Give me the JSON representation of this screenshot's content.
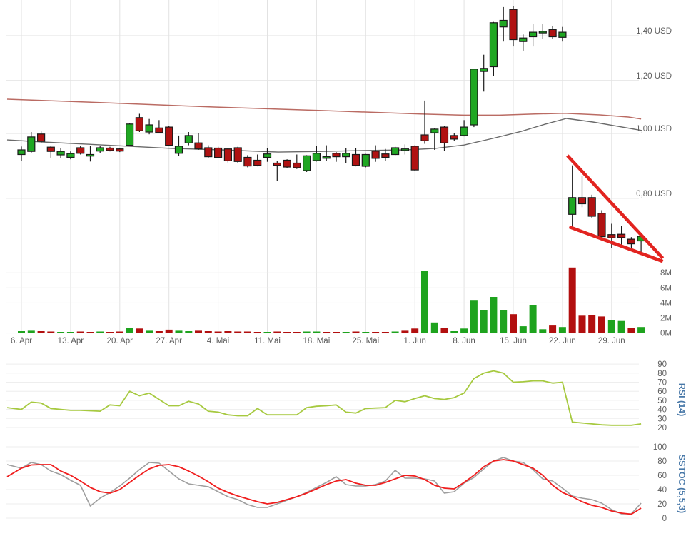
{
  "chart_data": {
    "type": "candlestick",
    "title": "",
    "scale": "log",
    "x_ticks": [
      "6. Apr",
      "13. Apr",
      "20. Apr",
      "27. Apr",
      "4. Mai",
      "11. Mai",
      "18. Mai",
      "25. Mai",
      "1. Jun",
      "8. Jun",
      "15. Jun",
      "22. Jun",
      "29. Jun"
    ],
    "price_axis": {
      "labels": [
        "1,40 USD",
        "1,20 USD",
        "1,00 USD",
        "0,80 USD"
      ],
      "values": [
        1.4,
        1.2,
        1.0,
        0.8
      ]
    },
    "volume_axis": {
      "labels": [
        "8M",
        "6M",
        "4M",
        "2M",
        "0M"
      ],
      "values": [
        8,
        6,
        4,
        2,
        0
      ]
    },
    "candles": [
      {
        "date": "6. Apr",
        "o": 0.93,
        "h": 0.956,
        "l": 0.911,
        "c": 0.945,
        "v": 0.25,
        "vc": "g"
      },
      {
        "date": "7. Apr",
        "o": 0.94,
        "h": 1.005,
        "l": 0.936,
        "c": 0.988,
        "v": 0.3,
        "vc": "g"
      },
      {
        "date": "8. Apr",
        "o": 0.998,
        "h": 1.007,
        "l": 0.968,
        "c": 0.973,
        "v": 0.25,
        "vc": "r"
      },
      {
        "date": "9. Apr",
        "o": 0.954,
        "h": 0.958,
        "l": 0.92,
        "c": 0.94,
        "v": 0.2,
        "vc": "r"
      },
      {
        "date": "10. Apr",
        "o": 0.929,
        "h": 0.952,
        "l": 0.918,
        "c": 0.94,
        "v": 0.15,
        "vc": "g"
      },
      {
        "date": "13. Apr",
        "o": 0.921,
        "h": 0.94,
        "l": 0.915,
        "c": 0.933,
        "v": 0.15,
        "vc": "g"
      },
      {
        "date": "14. Apr",
        "o": 0.952,
        "h": 0.958,
        "l": 0.93,
        "c": 0.934,
        "v": 0.2,
        "vc": "r"
      },
      {
        "date": "15. Apr",
        "o": 0.93,
        "h": 0.957,
        "l": 0.908,
        "c": 0.93,
        "v": 0.15,
        "vc": "r"
      },
      {
        "date": "16. Apr",
        "o": 0.941,
        "h": 0.958,
        "l": 0.935,
        "c": 0.952,
        "v": 0.2,
        "vc": "g"
      },
      {
        "date": "17. Apr",
        "o": 0.951,
        "h": 0.955,
        "l": 0.94,
        "c": 0.943,
        "v": 0.15,
        "vc": "r"
      },
      {
        "date": "20. Apr",
        "o": 0.948,
        "h": 0.952,
        "l": 0.938,
        "c": 0.941,
        "v": 0.2,
        "vc": "r"
      },
      {
        "date": "21. Apr",
        "o": 0.96,
        "h": 1.035,
        "l": 0.957,
        "c": 1.033,
        "v": 0.7,
        "vc": "g"
      },
      {
        "date": "22. Apr",
        "o": 1.056,
        "h": 1.07,
        "l": 1.005,
        "c": 1.009,
        "v": 0.6,
        "vc": "r"
      },
      {
        "date": "23. Apr",
        "o": 1.005,
        "h": 1.051,
        "l": 0.997,
        "c": 1.03,
        "v": 0.3,
        "vc": "g"
      },
      {
        "date": "24. Apr",
        "o": 1.019,
        "h": 1.047,
        "l": 1.0,
        "c": 1.003,
        "v": 0.25,
        "vc": "r"
      },
      {
        "date": "27. Apr",
        "o": 1.022,
        "h": 1.025,
        "l": 0.958,
        "c": 0.96,
        "v": 0.45,
        "vc": "r"
      },
      {
        "date": "28. Apr",
        "o": 0.934,
        "h": 0.993,
        "l": 0.926,
        "c": 0.957,
        "v": 0.3,
        "vc": "g"
      },
      {
        "date": "29. Apr",
        "o": 0.968,
        "h": 1.005,
        "l": 0.96,
        "c": 0.993,
        "v": 0.25,
        "vc": "g"
      },
      {
        "date": "30. Apr",
        "o": 0.968,
        "h": 1.001,
        "l": 0.945,
        "c": 0.948,
        "v": 0.3,
        "vc": "r"
      },
      {
        "date": "1. Mai",
        "o": 0.952,
        "h": 0.96,
        "l": 0.92,
        "c": 0.923,
        "v": 0.25,
        "vc": "r"
      },
      {
        "date": "4. Mai",
        "o": 0.951,
        "h": 0.955,
        "l": 0.918,
        "c": 0.921,
        "v": 0.2,
        "vc": "r"
      },
      {
        "date": "5. Mai",
        "o": 0.948,
        "h": 0.952,
        "l": 0.905,
        "c": 0.91,
        "v": 0.25,
        "vc": "r"
      },
      {
        "date": "6. Mai",
        "o": 0.952,
        "h": 0.955,
        "l": 0.903,
        "c": 0.908,
        "v": 0.2,
        "vc": "r"
      },
      {
        "date": "7. Mai",
        "o": 0.921,
        "h": 0.928,
        "l": 0.89,
        "c": 0.894,
        "v": 0.2,
        "vc": "r"
      },
      {
        "date": "8. Mai",
        "o": 0.912,
        "h": 0.93,
        "l": 0.893,
        "c": 0.896,
        "v": 0.15,
        "vc": "r"
      },
      {
        "date": "11. Mai",
        "o": 0.921,
        "h": 0.952,
        "l": 0.907,
        "c": 0.932,
        "v": 0.15,
        "vc": "g"
      },
      {
        "date": "12. Mai",
        "o": 0.903,
        "h": 0.91,
        "l": 0.85,
        "c": 0.896,
        "v": 0.2,
        "vc": "r"
      },
      {
        "date": "13. Mai",
        "o": 0.912,
        "h": 0.915,
        "l": 0.888,
        "c": 0.891,
        "v": 0.15,
        "vc": "r"
      },
      {
        "date": "14. Mai",
        "o": 0.903,
        "h": 0.93,
        "l": 0.885,
        "c": 0.889,
        "v": 0.15,
        "vc": "r"
      },
      {
        "date": "15. Mai",
        "o": 0.88,
        "h": 0.928,
        "l": 0.876,
        "c": 0.926,
        "v": 0.2,
        "vc": "g"
      },
      {
        "date": "18. Mai",
        "o": 0.911,
        "h": 0.957,
        "l": 0.908,
        "c": 0.934,
        "v": 0.2,
        "vc": "g"
      },
      {
        "date": "19. Mai",
        "o": 0.923,
        "h": 0.96,
        "l": 0.911,
        "c": 0.923,
        "v": 0.15,
        "vc": "r"
      },
      {
        "date": "20. Mai",
        "o": 0.934,
        "h": 0.938,
        "l": 0.907,
        "c": 0.923,
        "v": 0.15,
        "vc": "r"
      },
      {
        "date": "21. Mai",
        "o": 0.923,
        "h": 0.952,
        "l": 0.903,
        "c": 0.934,
        "v": 0.15,
        "vc": "g"
      },
      {
        "date": "22. Mai",
        "o": 0.93,
        "h": 0.951,
        "l": 0.893,
        "c": 0.896,
        "v": 0.2,
        "vc": "r"
      },
      {
        "date": "25. Mai",
        "o": 0.893,
        "h": 0.932,
        "l": 0.89,
        "c": 0.93,
        "v": 0.15,
        "vc": "g"
      },
      {
        "date": "26. Mai",
        "o": 0.941,
        "h": 0.96,
        "l": 0.907,
        "c": 0.918,
        "v": 0.15,
        "vc": "r"
      },
      {
        "date": "27. Mai",
        "o": 0.932,
        "h": 0.948,
        "l": 0.911,
        "c": 0.921,
        "v": 0.15,
        "vc": "r"
      },
      {
        "date": "28. Mai",
        "o": 0.93,
        "h": 0.955,
        "l": 0.928,
        "c": 0.952,
        "v": 0.2,
        "vc": "g"
      },
      {
        "date": "29. Mai",
        "o": 0.948,
        "h": 0.963,
        "l": 0.93,
        "c": 0.948,
        "v": 0.3,
        "vc": "r"
      },
      {
        "date": "1. Jun",
        "o": 0.957,
        "h": 0.96,
        "l": 0.878,
        "c": 0.882,
        "v": 0.6,
        "vc": "r"
      },
      {
        "date": "2. Jun",
        "o": 0.995,
        "h": 1.12,
        "l": 0.965,
        "c": 0.975,
        "v": 8.3,
        "vc": "g"
      },
      {
        "date": "3. Jun",
        "o": 1.002,
        "h": 1.018,
        "l": 0.945,
        "c": 1.015,
        "v": 1.4,
        "vc": "g"
      },
      {
        "date": "4. Jun",
        "o": 1.022,
        "h": 1.025,
        "l": 0.941,
        "c": 0.968,
        "v": 0.7,
        "vc": "r"
      },
      {
        "date": "5. Jun",
        "o": 0.993,
        "h": 1.0,
        "l": 0.975,
        "c": 0.981,
        "v": 0.25,
        "vc": "g"
      },
      {
        "date": "8. Jun",
        "o": 0.993,
        "h": 1.047,
        "l": 0.99,
        "c": 1.022,
        "v": 0.6,
        "vc": "g"
      },
      {
        "date": "9. Jun",
        "o": 1.03,
        "h": 1.25,
        "l": 1.022,
        "c": 1.248,
        "v": 4.3,
        "vc": "g"
      },
      {
        "date": "10. Jun",
        "o": 1.238,
        "h": 1.311,
        "l": 1.155,
        "c": 1.251,
        "v": 3.0,
        "vc": "g"
      },
      {
        "date": "11. Jun",
        "o": 1.258,
        "h": 1.468,
        "l": 1.218,
        "c": 1.464,
        "v": 4.8,
        "vc": "g"
      },
      {
        "date": "12. Jun",
        "o": 1.443,
        "h": 1.545,
        "l": 1.372,
        "c": 1.476,
        "v": 3.0,
        "vc": "g"
      },
      {
        "date": "15. Jun",
        "o": 1.532,
        "h": 1.551,
        "l": 1.349,
        "c": 1.381,
        "v": 2.5,
        "vc": "r"
      },
      {
        "date": "16. Jun",
        "o": 1.372,
        "h": 1.406,
        "l": 1.33,
        "c": 1.389,
        "v": 0.9,
        "vc": "g"
      },
      {
        "date": "17. Jun",
        "o": 1.395,
        "h": 1.459,
        "l": 1.349,
        "c": 1.417,
        "v": 3.7,
        "vc": "g"
      },
      {
        "date": "18. Jun",
        "o": 1.42,
        "h": 1.457,
        "l": 1.385,
        "c": 1.421,
        "v": 0.5,
        "vc": "g"
      },
      {
        "date": "19. Jun",
        "o": 1.43,
        "h": 1.447,
        "l": 1.384,
        "c": 1.395,
        "v": 1.0,
        "vc": "r"
      },
      {
        "date": "22. Jun",
        "o": 1.392,
        "h": 1.443,
        "l": 1.372,
        "c": 1.417,
        "v": 0.8,
        "vc": "g"
      },
      {
        "date": "23. Jun",
        "o": 0.757,
        "h": 0.896,
        "l": 0.724,
        "c": 0.802,
        "v": 8.7,
        "vc": "r"
      },
      {
        "date": "24. Jun",
        "o": 0.802,
        "h": 0.864,
        "l": 0.776,
        "c": 0.785,
        "v": 2.3,
        "vc": "r"
      },
      {
        "date": "25. Jun",
        "o": 0.802,
        "h": 0.81,
        "l": 0.748,
        "c": 0.752,
        "v": 2.4,
        "vc": "r"
      },
      {
        "date": "26. Jun",
        "o": 0.76,
        "h": 0.768,
        "l": 0.698,
        "c": 0.701,
        "v": 2.2,
        "vc": "r"
      },
      {
        "date": "29. Jun",
        "o": 0.706,
        "h": 0.733,
        "l": 0.675,
        "c": 0.698,
        "v": 1.7,
        "vc": "g"
      },
      {
        "date": "30. Jun",
        "o": 0.707,
        "h": 0.727,
        "l": 0.68,
        "c": 0.699,
        "v": 1.6,
        "vc": "g"
      },
      {
        "date": "1. Jul",
        "o": 0.695,
        "h": 0.7,
        "l": 0.667,
        "c": 0.684,
        "v": 0.7,
        "vc": "r"
      },
      {
        "date": "2. Jul",
        "o": 0.691,
        "h": 0.707,
        "l": 0.665,
        "c": 0.702,
        "v": 0.8,
        "vc": "g"
      }
    ],
    "sma_short": [
      [
        -1.45,
        0.978
      ],
      [
        2.18,
        0.971
      ],
      [
        6.5,
        0.964
      ],
      [
        10.9,
        0.957
      ],
      [
        15.2,
        0.95
      ],
      [
        20.3,
        0.945
      ],
      [
        26.1,
        0.938
      ],
      [
        30.5,
        0.94
      ],
      [
        34.8,
        0.943
      ],
      [
        39.2,
        0.945
      ],
      [
        42.1,
        0.95
      ],
      [
        45.0,
        0.961
      ],
      [
        47.9,
        0.983
      ],
      [
        50.8,
        1.007
      ],
      [
        53.0,
        1.03
      ],
      [
        55.4,
        1.053
      ],
      [
        58.1,
        1.04
      ],
      [
        60.6,
        1.025
      ],
      [
        63.1,
        1.01
      ]
    ],
    "sma_long": [
      [
        -1.45,
        1.125
      ],
      [
        8.7,
        1.111
      ],
      [
        19.6,
        1.095
      ],
      [
        30.5,
        1.082
      ],
      [
        40.6,
        1.069
      ],
      [
        45.0,
        1.065
      ],
      [
        48.6,
        1.065
      ],
      [
        52.2,
        1.069
      ],
      [
        55.2,
        1.072
      ],
      [
        58.8,
        1.066
      ],
      [
        61.7,
        1.058
      ],
      [
        63.0,
        1.051
      ]
    ],
    "trend_lines": [
      {
        "from": [
          55.5,
          0.927
        ],
        "to": [
          65.2,
          0.651
        ]
      },
      {
        "from": [
          55.7,
          0.725
        ],
        "to": [
          65.2,
          0.644
        ]
      }
    ],
    "rsi": {
      "label": "RSI (14)",
      "axis_labels": [
        "90",
        "80",
        "70",
        "60",
        "50",
        "40",
        "30",
        "20"
      ],
      "axis_values": [
        90,
        80,
        70,
        60,
        50,
        40,
        30,
        20
      ],
      "lead": 42,
      "values": [
        40,
        48,
        47,
        41,
        40,
        39,
        39,
        38.5,
        38,
        45,
        44,
        60,
        55,
        58,
        51,
        44,
        44,
        49,
        46,
        38,
        37,
        34,
        33,
        33,
        41,
        34,
        34,
        34,
        34,
        42,
        43.5,
        44,
        45,
        37,
        36,
        41,
        41.5,
        42,
        50,
        48.5,
        52,
        55,
        52,
        51,
        53,
        58,
        74,
        80,
        82.5,
        80,
        70,
        70.5,
        71.5,
        71.5,
        69,
        70,
        26,
        25,
        24,
        23,
        22.5,
        22.5,
        22.5,
        24
      ]
    },
    "stoch": {
      "label": "SSTOC (5,5,3)",
      "axis_labels": [
        "100",
        "80",
        "60",
        "40",
        "20",
        "0"
      ],
      "axis_values": [
        100,
        80,
        60,
        40,
        20,
        0
      ],
      "k_lead": 75,
      "d_lead": 58,
      "k": [
        70,
        78,
        75,
        66,
        61,
        53,
        46,
        17,
        28,
        36,
        45,
        56,
        68,
        78,
        77,
        66,
        55,
        48,
        46,
        44,
        37,
        30,
        26,
        19,
        15,
        15,
        20,
        25,
        30,
        36,
        43,
        50,
        58,
        47,
        45,
        45,
        47,
        52,
        67,
        56,
        56,
        55,
        52,
        35,
        37,
        49,
        57,
        69,
        80,
        85,
        80,
        78,
        68,
        55,
        52,
        42,
        31,
        28,
        26,
        21,
        12,
        6,
        6,
        21
      ],
      "d": [
        70,
        74.5,
        75,
        75,
        66,
        60,
        52,
        43,
        37,
        35,
        40,
        50,
        60,
        69,
        74,
        75,
        72,
        66,
        59,
        51,
        42,
        36,
        31,
        27,
        23,
        20,
        22,
        26,
        30,
        35,
        41,
        47,
        52,
        54,
        49,
        46,
        46,
        50,
        55,
        60,
        59,
        54,
        46,
        42,
        41,
        50,
        60,
        72,
        80,
        82,
        80,
        75,
        70,
        60,
        46,
        36,
        30,
        23,
        18,
        15,
        10,
        7,
        5.5,
        14
      ]
    },
    "colors": {
      "candle_up": "#1fa722",
      "candle_down": "#b01212",
      "candle_border": "#1a1a1a",
      "volume_up": "#1ea31e",
      "volume_down": "#b20f0f",
      "sma_short": "#6a6a6a",
      "sma_long": "#b25b52",
      "trend_line": "#e22420",
      "rsi_line": "#a6c93f",
      "stoch_k": "#9e9e9e",
      "stoch_d": "#f01e1e",
      "grid_main": "#e2e2e2",
      "grid_sub": "#eeeeee",
      "axis_text": "#606060",
      "panel_label": "#4878a8"
    }
  }
}
